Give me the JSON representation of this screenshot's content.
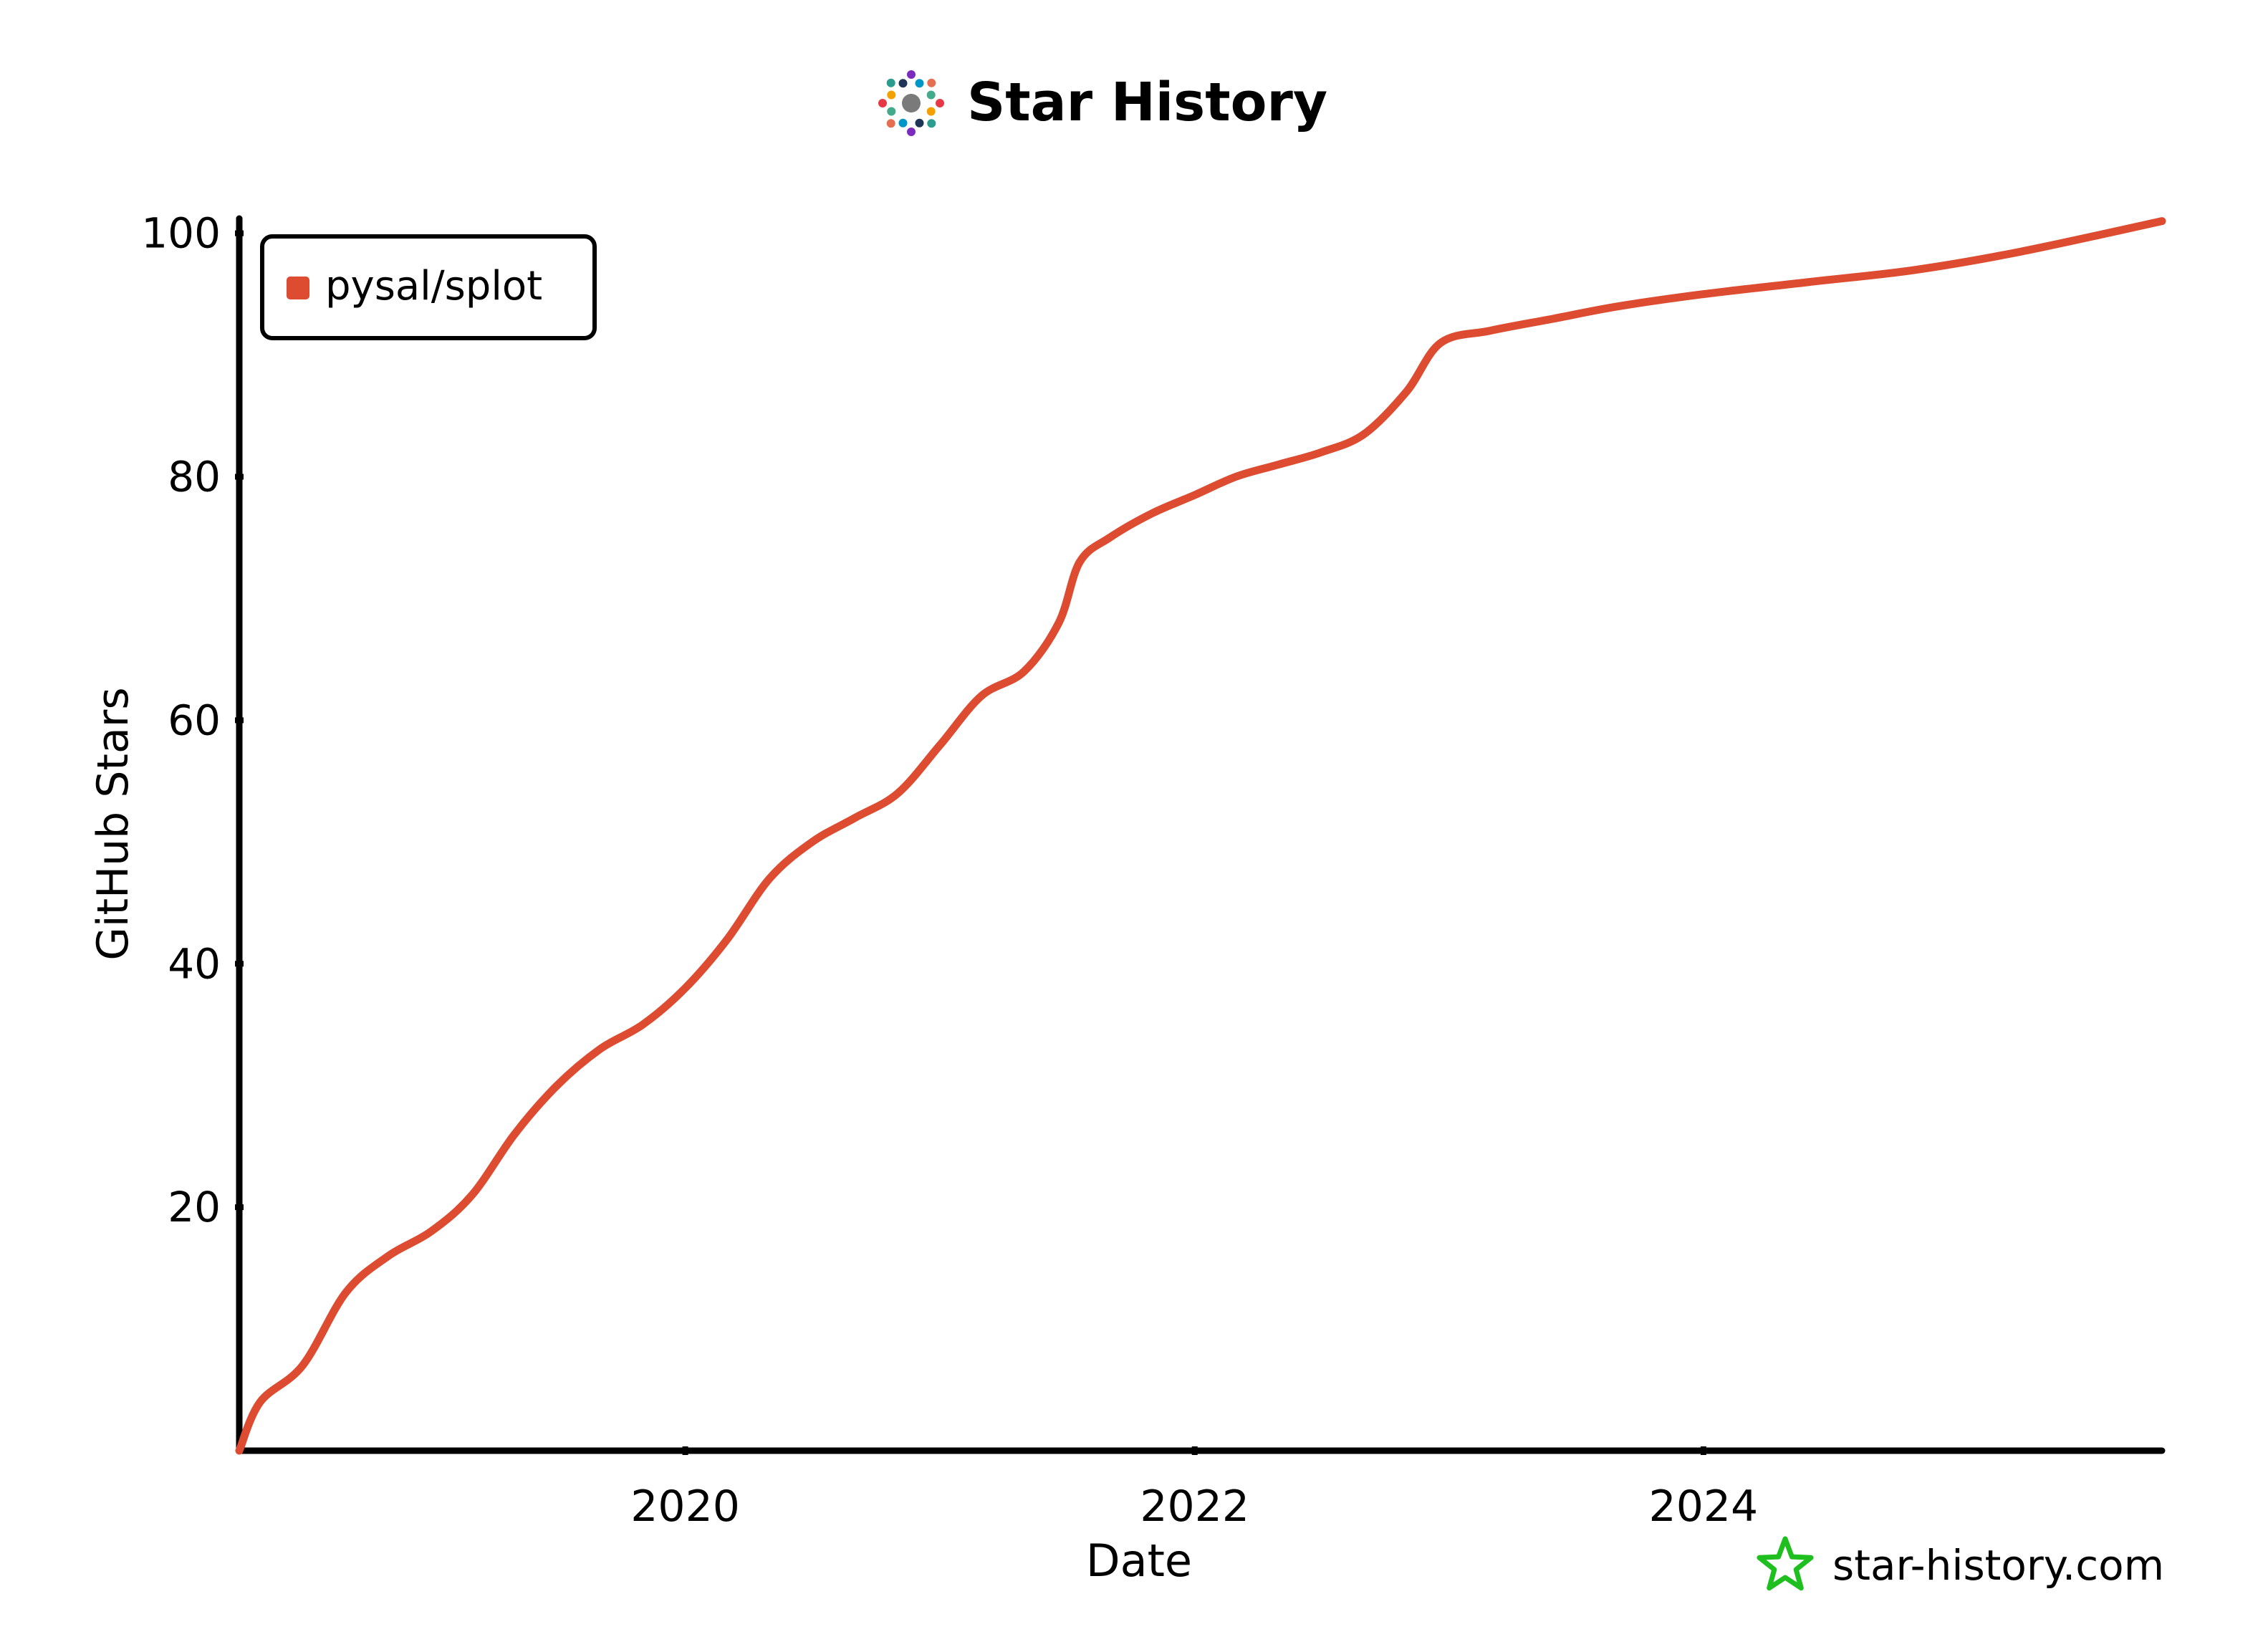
{
  "header": {
    "title": "Star History",
    "logo_icon": "star-history-logo-icon"
  },
  "watermark": {
    "text": "star-history.com",
    "icon": "star-outline-icon",
    "icon_color": "#1fbf1f"
  },
  "chart_data": {
    "type": "line",
    "title": "Star History",
    "xlabel": "Date",
    "ylabel": "GitHub Stars",
    "x_ticks": [
      "2020",
      "2022",
      "2024"
    ],
    "y_ticks": [
      20,
      40,
      60,
      80,
      100
    ],
    "xlim": [
      "2018-04-01",
      "2025-10-20"
    ],
    "ylim": [
      0,
      100
    ],
    "grid": false,
    "legend_placement": "top-left",
    "series": [
      {
        "name": "pysal/splot",
        "color": "#dd4b31",
        "points": [
          [
            "2018-04-01",
            0
          ],
          [
            "2018-05-01",
            4
          ],
          [
            "2018-07-01",
            7
          ],
          [
            "2018-09-01",
            13
          ],
          [
            "2018-11-01",
            16
          ],
          [
            "2019-01-01",
            18
          ],
          [
            "2019-03-01",
            21
          ],
          [
            "2019-05-01",
            26
          ],
          [
            "2019-07-01",
            30
          ],
          [
            "2019-09-01",
            33
          ],
          [
            "2019-11-01",
            35
          ],
          [
            "2020-01-01",
            38
          ],
          [
            "2020-03-01",
            42
          ],
          [
            "2020-05-01",
            47
          ],
          [
            "2020-07-01",
            50
          ],
          [
            "2020-09-01",
            52
          ],
          [
            "2020-11-01",
            54
          ],
          [
            "2021-01-01",
            58
          ],
          [
            "2021-03-01",
            62
          ],
          [
            "2021-05-01",
            64
          ],
          [
            "2021-06-20",
            68
          ],
          [
            "2021-07-20",
            73
          ],
          [
            "2021-09-01",
            75
          ],
          [
            "2021-11-01",
            77
          ],
          [
            "2022-01-01",
            78.5
          ],
          [
            "2022-03-01",
            80
          ],
          [
            "2022-05-01",
            81
          ],
          [
            "2022-07-01",
            82
          ],
          [
            "2022-09-01",
            83.5
          ],
          [
            "2022-11-01",
            87
          ],
          [
            "2022-12-20",
            91
          ],
          [
            "2023-03-01",
            92
          ],
          [
            "2023-06-01",
            93
          ],
          [
            "2023-09-01",
            94
          ],
          [
            "2024-01-01",
            95
          ],
          [
            "2024-06-01",
            96
          ],
          [
            "2024-11-01",
            97
          ],
          [
            "2025-04-01",
            98.5
          ],
          [
            "2025-10-20",
            101
          ]
        ]
      }
    ]
  }
}
